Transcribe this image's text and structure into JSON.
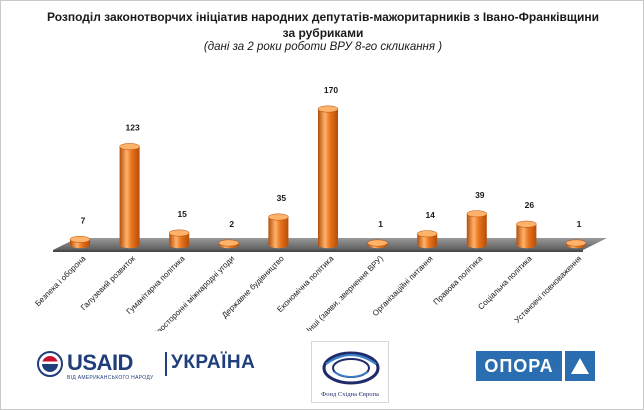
{
  "title_line1": "Розподіл законотворчих ініціатив народних депутатів-мажоритарників з Івано-Франківщини",
  "title_line2": "за рубриками",
  "subtitle": "(дані за 2 роки роботи ВРУ 8-го скликання )",
  "colors": {
    "bar": "#e8731c",
    "bar_dark": "#b54e08",
    "bar_light": "#ffb26a",
    "floor": "#808080",
    "brand_blue": "#1f3e7a",
    "brand_red": "#c8102e",
    "opora_blue": "#2a6db0"
  },
  "chart_data": {
    "type": "bar",
    "style": "3d-cylinder",
    "categories": [
      "Безпека і оборона",
      "Галузевий розвиток",
      "Гуманітарна політика",
      "Двосторонні міжнародні угоди",
      "Державне будівництво",
      "Економічна політика",
      "Інші (заяви, звернення ВРУ)",
      "Організаційні питання",
      "Правова політика",
      "Соціальна політика",
      "Установчі повноваження"
    ],
    "values": [
      7,
      123,
      15,
      2,
      35,
      170,
      1,
      14,
      39,
      26,
      1
    ],
    "ylim": [
      0,
      180
    ],
    "grid": false,
    "legend": "none",
    "data_labels": true
  },
  "logos": {
    "usaid": {
      "mark": "USAID",
      "divider": "|",
      "country": "УКРАЇНА",
      "tagline": "ВІД АМЕРИКАНСЬКОГО НАРОДУ"
    },
    "fond": {
      "caption": "Фонд Східна Європа"
    },
    "opora": {
      "name": "ОПОРА"
    }
  }
}
